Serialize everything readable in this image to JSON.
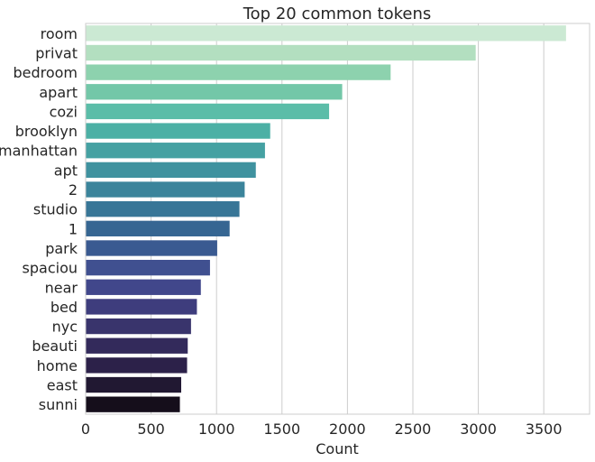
{
  "chart_data": {
    "type": "bar",
    "orientation": "horizontal",
    "title": "Top 20 common tokens",
    "xlabel": "Count",
    "ylabel": "",
    "xlim": [
      0,
      3850
    ],
    "xticks": [
      0,
      500,
      1000,
      1500,
      2000,
      2500,
      3000,
      3500
    ],
    "grid": "vertical",
    "categories": [
      "room",
      "privat",
      "bedroom",
      "apart",
      "cozi",
      "brooklyn",
      "manhattan",
      "apt",
      "2",
      "studio",
      "1",
      "park",
      "spaciou",
      "near",
      "bed",
      "nyc",
      "beauti",
      "home",
      "east",
      "sunni"
    ],
    "values": [
      3670,
      2980,
      2330,
      1960,
      1860,
      1410,
      1370,
      1300,
      1215,
      1175,
      1100,
      1005,
      950,
      880,
      850,
      805,
      780,
      775,
      730,
      720
    ],
    "colors": [
      "#cbe9d3",
      "#b3dfc0",
      "#8dd2ae",
      "#73c7a8",
      "#5bbda8",
      "#4cb0a5",
      "#45a1a2",
      "#3f929f",
      "#3b849b",
      "#387697",
      "#366692",
      "#3a5a91",
      "#405090",
      "#41478b",
      "#3e3d7d",
      "#39346c",
      "#332a5b",
      "#2c2149",
      "#211832",
      "#150e1b"
    ]
  }
}
